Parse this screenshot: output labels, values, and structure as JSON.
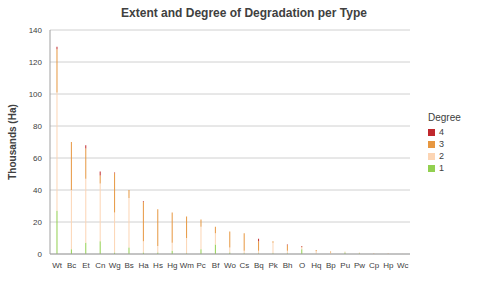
{
  "chart_data": {
    "type": "bar",
    "title": "Extent and Degree of Degradation per Type",
    "y_label": "Thousands (Ha)",
    "legend_title": "Degree",
    "stacked": true,
    "grid": true,
    "legend": "right",
    "categories": [
      "Wt",
      "Bc",
      "Et",
      "Cn",
      "Wg",
      "Bs",
      "Ha",
      "Hs",
      "Hg",
      "Wm",
      "Pc",
      "Bf",
      "Wo",
      "Cs",
      "Bq",
      "Pk",
      "Bh",
      "O",
      "Hq",
      "Bp",
      "Pu",
      "Pw",
      "Cp",
      "Hp",
      "Wc"
    ],
    "ylim": [
      0,
      140
    ],
    "yticks": [
      0,
      20,
      40,
      60,
      80,
      100,
      120,
      140
    ],
    "series": [
      {
        "name": "1",
        "color": "#92d050",
        "values": [
          27,
          3,
          7,
          8,
          1,
          4,
          1,
          1,
          2,
          0.5,
          3,
          6,
          1,
          0.5,
          0.5,
          0.5,
          0.5,
          3,
          0.2,
          0,
          1,
          0.5,
          0,
          0,
          0
        ]
      },
      {
        "name": "2",
        "color": "#fcd5b4",
        "values": [
          74,
          37,
          40,
          36,
          25,
          31,
          7,
          4,
          5,
          9.5,
          14,
          7,
          3,
          1.5,
          1.5,
          6.5,
          1.5,
          1,
          1.5,
          1,
          0.5,
          0.5,
          0.5,
          0.3,
          0.2
        ]
      },
      {
        "name": "3",
        "color": "#e79740",
        "values": [
          27,
          30,
          19,
          5,
          24.5,
          5,
          24.5,
          23,
          19,
          13.5,
          4.5,
          4,
          10,
          11,
          6,
          1,
          3.5,
          0.5,
          0.8,
          0.5,
          0,
          0,
          0.2,
          0.1,
          0
        ]
      },
      {
        "name": "4",
        "color": "#c0282d",
        "values": [
          1.5,
          0,
          2,
          2.5,
          0.5,
          0,
          0.5,
          0,
          0,
          0,
          0,
          0,
          0,
          0,
          1.5,
          0,
          0.5,
          0.5,
          0,
          0,
          0,
          0,
          0,
          0,
          0
        ]
      }
    ]
  }
}
